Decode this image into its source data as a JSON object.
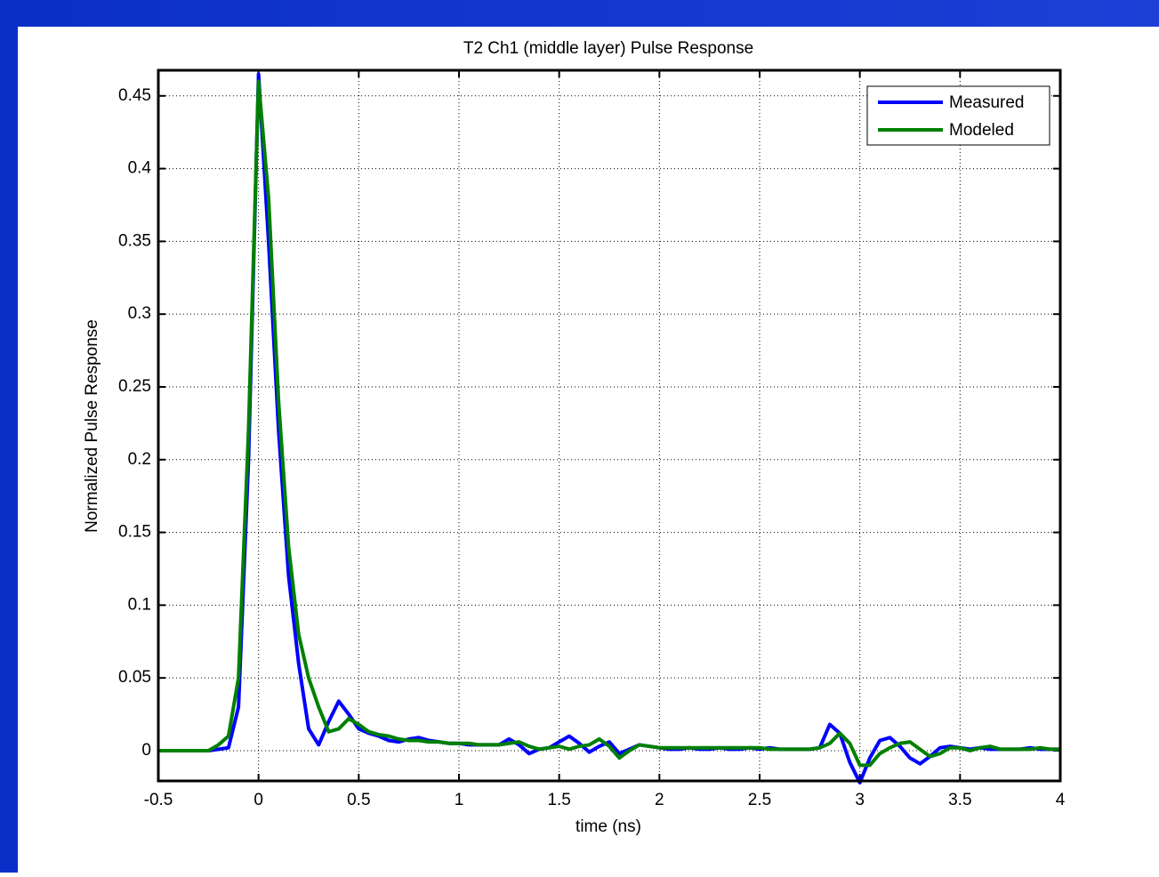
{
  "chart_data": {
    "type": "line",
    "title": "T2 Ch1 (middle layer) Pulse Response",
    "x_label": "time (ns)",
    "y_label": "Normalized Pulse Response",
    "x": [
      -0.5,
      -0.45,
      -0.4,
      -0.35,
      -0.3,
      -0.25,
      -0.2,
      -0.15,
      -0.1,
      -0.05,
      0,
      0.05,
      0.1,
      0.15,
      0.2,
      0.25,
      0.3,
      0.35,
      0.4,
      0.45,
      0.5,
      0.55,
      0.6,
      0.65,
      0.7,
      0.75,
      0.8,
      0.85,
      0.9,
      0.95,
      1,
      1.05,
      1.1,
      1.15,
      1.2,
      1.25,
      1.3,
      1.35,
      1.4,
      1.45,
      1.5,
      1.55,
      1.6,
      1.65,
      1.7,
      1.75,
      1.8,
      1.85,
      1.9,
      1.95,
      2,
      2.05,
      2.1,
      2.15,
      2.2,
      2.25,
      2.3,
      2.35,
      2.4,
      2.45,
      2.5,
      2.55,
      2.6,
      2.65,
      2.7,
      2.75,
      2.8,
      2.85,
      2.9,
      2.95,
      3,
      3.05,
      3.1,
      3.15,
      3.2,
      3.25,
      3.3,
      3.35,
      3.4,
      3.45,
      3.5,
      3.55,
      3.6,
      3.65,
      3.7,
      3.75,
      3.8,
      3.85,
      3.9,
      3.95,
      4
    ],
    "series": [
      {
        "name": "Measured",
        "color": "#0000ff",
        "values": [
          0,
          0,
          0,
          0,
          0,
          0,
          0.001,
          0.002,
          0.03,
          0.2,
          0.465,
          0.35,
          0.22,
          0.12,
          0.06,
          0.015,
          0.004,
          0.02,
          0.034,
          0.025,
          0.015,
          0.012,
          0.01,
          0.007,
          0.006,
          0.008,
          0.009,
          0.007,
          0.006,
          0.005,
          0.005,
          0.004,
          0.004,
          0.004,
          0.004,
          0.008,
          0.004,
          -0.002,
          0.001,
          0.002,
          0.006,
          0.01,
          0.005,
          -0.001,
          0.003,
          0.006,
          -0.002,
          0.001,
          0.004,
          0.003,
          0.002,
          0.001,
          0.001,
          0.002,
          0.001,
          0.001,
          0.002,
          0.001,
          0.001,
          0.002,
          0.001,
          0.002,
          0.001,
          0.001,
          0.001,
          0.001,
          0.002,
          0.018,
          0.012,
          -0.008,
          -0.022,
          -0.005,
          0.007,
          0.009,
          0.003,
          -0.005,
          -0.009,
          -0.004,
          0.002,
          0.003,
          0.002,
          0.001,
          0.002,
          0.001,
          0.001,
          0.001,
          0.001,
          0.002,
          0.001,
          0.001,
          0.001
        ]
      },
      {
        "name": "Modeled",
        "color": "#008000",
        "values": [
          0,
          0,
          0,
          0,
          0,
          0,
          0.004,
          0.01,
          0.05,
          0.22,
          0.46,
          0.38,
          0.24,
          0.14,
          0.08,
          0.05,
          0.03,
          0.013,
          0.015,
          0.022,
          0.018,
          0.013,
          0.011,
          0.01,
          0.008,
          0.007,
          0.007,
          0.006,
          0.006,
          0.005,
          0.005,
          0.005,
          0.004,
          0.004,
          0.004,
          0.005,
          0.006,
          0.003,
          0.001,
          0.002,
          0.003,
          0.001,
          0.003,
          0.004,
          0.008,
          0.003,
          -0.005,
          0,
          0.004,
          0.003,
          0.002,
          0.002,
          0.002,
          0.002,
          0.002,
          0.002,
          0.002,
          0.002,
          0.002,
          0.002,
          0.002,
          0.001,
          0.001,
          0.001,
          0.001,
          0.001,
          0.002,
          0.005,
          0.012,
          0.005,
          -0.01,
          -0.01,
          -0.002,
          0.002,
          0.005,
          0.006,
          0.001,
          -0.004,
          -0.002,
          0.002,
          0.002,
          0,
          0.002,
          0.003,
          0.001,
          0.001,
          0.001,
          0.001,
          0.002,
          0.001,
          0.001
        ]
      }
    ],
    "xlim": [
      -0.5,
      4
    ],
    "ylim": [
      -0.0208,
      0.4676
    ],
    "xticks": [
      -0.5,
      0,
      0.5,
      1,
      1.5,
      2,
      2.5,
      3,
      3.5,
      4
    ],
    "yticks": [
      0,
      0.05,
      0.1,
      0.15,
      0.2,
      0.25,
      0.3,
      0.35,
      0.4,
      0.45
    ],
    "grid": true,
    "legend": "upper right"
  }
}
